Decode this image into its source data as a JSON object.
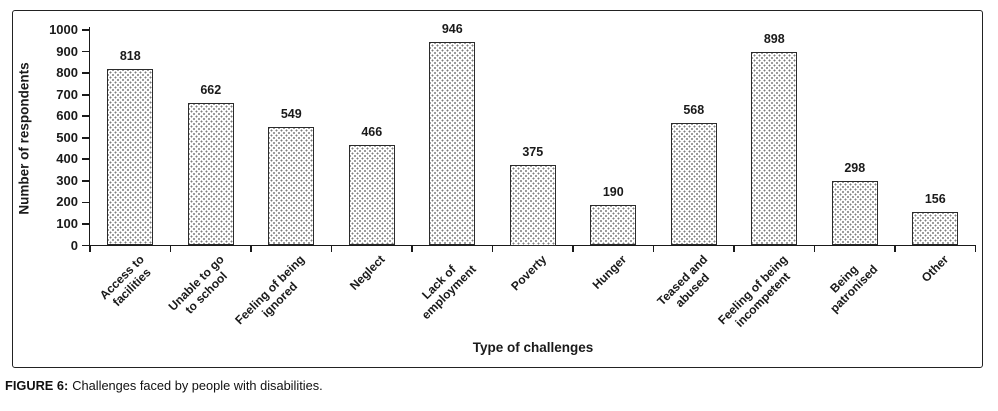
{
  "figure": {
    "caption_label": "FIGURE 6:",
    "caption_text": "Challenges faced by people with disabilities."
  },
  "chart_data": {
    "type": "bar",
    "title": "",
    "categories": [
      "Access to\nfacilities",
      "Unable to go\nto school",
      "Feeling of being\nignored",
      "Neglect",
      "Lack of\nemployment",
      "Poverty",
      "Hunger",
      "Teased and\nabused",
      "Feeling of being\nincompetent",
      "Being\npatronised",
      "Other"
    ],
    "values": [
      818,
      662,
      549,
      466,
      946,
      375,
      190,
      568,
      898,
      298,
      156
    ],
    "xlabel": "Type of challenges",
    "ylabel": "Number of respondents",
    "ylim": [
      0,
      1000
    ],
    "yticks": [
      0,
      100,
      200,
      300,
      400,
      500,
      600,
      700,
      800,
      900,
      1000
    ],
    "grid": false,
    "legend": "none",
    "bar_style": {
      "fill": "white with gray stipple dots",
      "dot_color": "#7e7e7e",
      "border_color": "#2b2b2b",
      "axis_color": "#1a1a1a"
    }
  }
}
